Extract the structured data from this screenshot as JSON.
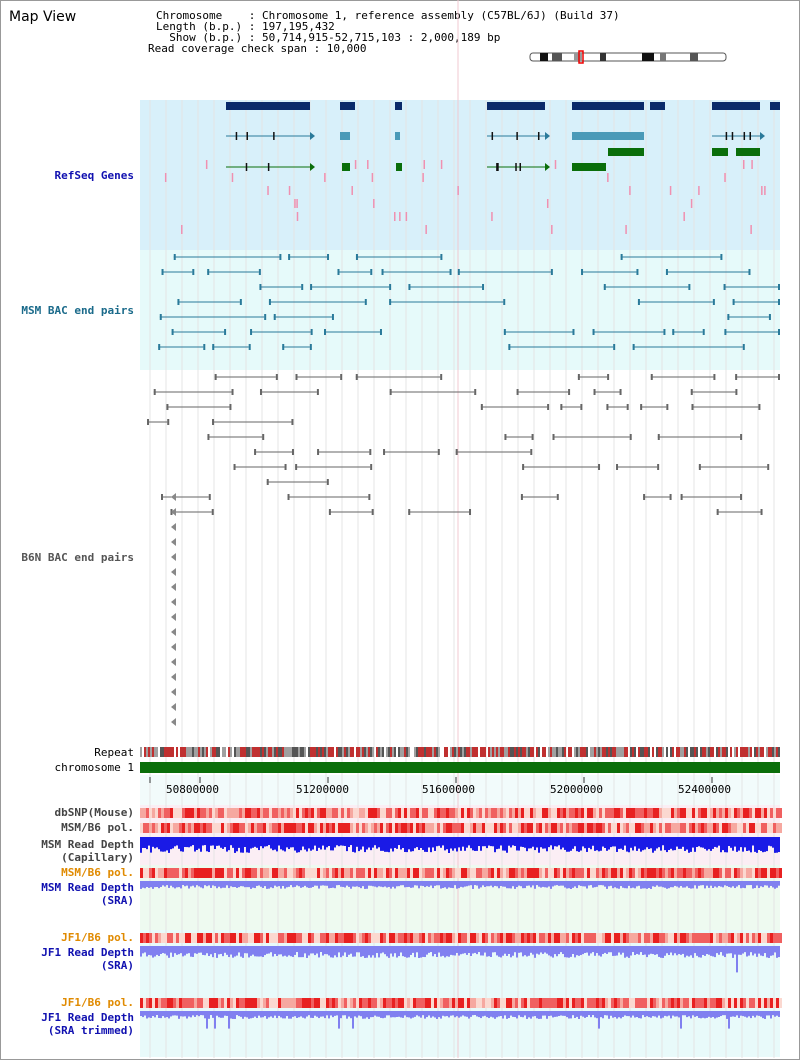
{
  "page": {
    "title": "Map View"
  },
  "header": {
    "chromosome_label": "Chromosome    : Chromosome 1, reference assembly (C57BL/6J) (Build 37)",
    "length_label": "Length (b.p.) : 197,195,432",
    "show_label": "  Show (b.p.) : 50,714,915-52,715,103 : 2,000,189 bp",
    "coverage_label": "Read coverage check span : 10,000"
  },
  "tracks": {
    "refseq": "RefSeq Genes",
    "msm_bac": "MSM BAC end pairs",
    "b6n_bac": "B6N BAC end pairs",
    "repeat": "Repeat",
    "chromosome": "chromosome 1",
    "dbsnp": "dbSNP(Mouse)",
    "msm_b6_pol": "MSM/B6 pol.",
    "msm_read_depth_cap_1": "MSM Read Depth",
    "msm_read_depth_cap_2": "(Capillary)",
    "msm_b6_pol_2": "MSM/B6 pol.",
    "msm_read_depth_sra_1": "MSM Read Depth",
    "msm_read_depth_sra_2": "(SRA)",
    "jf1_b6_pol": "JF1/B6 pol.",
    "jf1_read_depth_1": "JF1 Read Depth",
    "jf1_read_depth_2": "(SRA)",
    "jf1_b6_pol_2": "JF1/B6 pol.",
    "jf1_read_depth_trim_1": "JF1 Read Depth",
    "jf1_read_depth_trim_2": "(SRA trimmed)"
  },
  "axis": {
    "ticks": [
      "50800000",
      "51200000",
      "51600000",
      "52000000",
      "52400000"
    ]
  },
  "colors": {
    "refseq_bg": "#d8f0fa",
    "bac_bg": "#e6fafa",
    "depth_bg": "#eefaf0",
    "msm_bac": "#2a7a9a",
    "b6n_bac": "#666666",
    "chromosome": "#0a6e0a",
    "depth_blue": "#1a1ae6",
    "depth_light": "#8080f0",
    "label_blue": "#1010b0",
    "label_orange": "#e08a00",
    "label_teal": "#1a6a8a"
  }
}
